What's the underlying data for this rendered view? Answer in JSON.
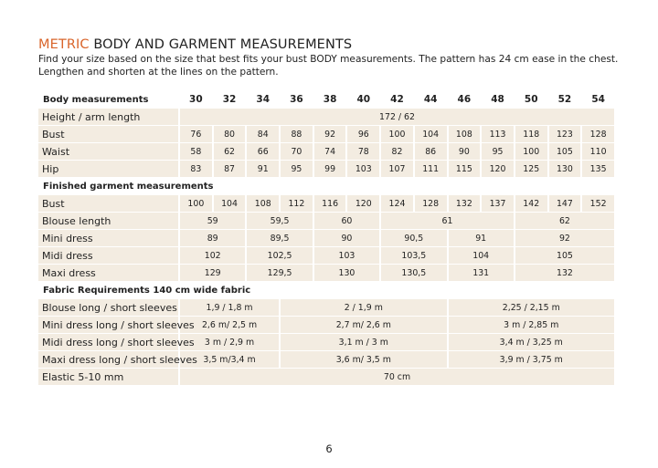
{
  "header": {
    "title_accent": "METRIC",
    "title": "BODY AND GARMENT MEASUREMENTS",
    "intro": "Find your size based on the size that best fits your bust BODY measurements. The pattern has 24 cm ease in the chest. Lengthen and shorten at the lines on the pattern."
  },
  "table": {
    "sections": [
      {
        "heading": "Body measurements",
        "sizes": [
          "30",
          "32",
          "34",
          "36",
          "38",
          "40",
          "42",
          "44",
          "46",
          "48",
          "50",
          "52",
          "54"
        ],
        "rows": [
          {
            "label": "Height / arm length",
            "cells": [
              "172 / 62"
            ]
          },
          {
            "label": "Bust",
            "cells": [
              "76",
              "80",
              "84",
              "88",
              "92",
              "96",
              "100",
              "104",
              "108",
              "113",
              "118",
              "123",
              "128"
            ]
          },
          {
            "label": "Waist",
            "cells": [
              "58",
              "62",
              "66",
              "70",
              "74",
              "78",
              "82",
              "86",
              "90",
              "95",
              "100",
              "105",
              "110"
            ]
          },
          {
            "label": "Hip",
            "cells": [
              "83",
              "87",
              "91",
              "95",
              "99",
              "103",
              "107",
              "111",
              "115",
              "120",
              "125",
              "130",
              "135"
            ]
          }
        ]
      },
      {
        "heading": "Finished garment measurements",
        "rows": [
          {
            "label": "Bust",
            "cells": [
              "100",
              "104",
              "108",
              "112",
              "116",
              "120",
              "124",
              "128",
              "132",
              "137",
              "142",
              "147",
              "152"
            ]
          },
          {
            "label": "Blouse length",
            "cells": [
              "59",
              "59,5",
              "60",
              "61",
              "62"
            ]
          },
          {
            "label": "Mini dress",
            "cells": [
              "89",
              "89,5",
              "90",
              "90,5",
              "91",
              "92"
            ]
          },
          {
            "label": "Midi dress",
            "cells": [
              "102",
              "102,5",
              "103",
              "103,5",
              "104",
              "105"
            ]
          },
          {
            "label": "Maxi dress",
            "cells": [
              "129",
              "129,5",
              "130",
              "130,5",
              "131",
              "132"
            ]
          }
        ]
      },
      {
        "heading": "Fabric Requirements 140 cm wide fabric",
        "rows": [
          {
            "label": "Blouse long / short sleeves",
            "cells": [
              "1,9  / 1,8 m",
              "2  / 1,9 m",
              "2,25  / 2,15 m"
            ]
          },
          {
            "label": "Mini dress long / short sleeves",
            "cells": [
              "2,6 m/ 2,5 m",
              "2,7 m/ 2,6 m",
              "3 m / 2,85 m"
            ]
          },
          {
            "label": "Midi dress long / short sleeves",
            "cells": [
              "3 m / 2,9 m",
              "3,1 m / 3 m",
              "3,4 m / 3,25 m"
            ]
          },
          {
            "label": "Maxi dress long / short sleeves",
            "cells": [
              "3,5 m/3,4 m",
              "3,6 m/ 3,5 m",
              "3,9 m / 3,75 m"
            ]
          },
          {
            "label": "Elastic 5-10 mm",
            "cells": [
              "70 cm"
            ]
          }
        ]
      }
    ]
  },
  "page_number": "6"
}
